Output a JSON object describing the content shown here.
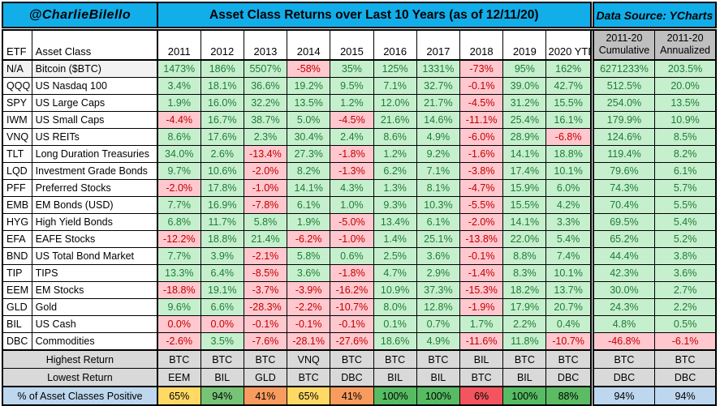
{
  "header": {
    "handle": "@CharlieBilello",
    "title": "Asset Class Returns over Last 10 Years (as of 12/11/20)",
    "data_source": "Data Source: YCharts"
  },
  "columns": {
    "etf": "ETF",
    "asset_class": "Asset Class",
    "years": [
      "2011",
      "2012",
      "2013",
      "2014",
      "2015",
      "2016",
      "2017",
      "2018",
      "2019",
      "2020 YTD"
    ],
    "cumulative": "2011-20\nCumulative",
    "annualized": "2011-20\nAnnualized"
  },
  "chart_data": {
    "type": "table",
    "title": "Asset Class Returns over Last 10 Years (as of 12/11/20)",
    "columns": [
      "2011",
      "2012",
      "2013",
      "2014",
      "2015",
      "2016",
      "2017",
      "2018",
      "2019",
      "2020 YTD",
      "2011-20 Cumulative",
      "2011-20 Annualized"
    ],
    "rows": [
      {
        "etf": "N/A",
        "asset_class": "Bitcoin ($BTC)",
        "values": [
          "1473%",
          "186%",
          "5507%",
          "-58%",
          "35%",
          "125%",
          "1331%",
          "-73%",
          "95%",
          "162%",
          "6271233%",
          "203.5%"
        ]
      },
      {
        "etf": "QQQ",
        "asset_class": "US Nasdaq 100",
        "values": [
          "3.4%",
          "18.1%",
          "36.6%",
          "19.2%",
          "9.5%",
          "7.1%",
          "32.7%",
          "-0.1%",
          "39.0%",
          "42.7%",
          "512.5%",
          "20.0%"
        ]
      },
      {
        "etf": "SPY",
        "asset_class": "US Large Caps",
        "values": [
          "1.9%",
          "16.0%",
          "32.2%",
          "13.5%",
          "1.2%",
          "12.0%",
          "21.7%",
          "-4.5%",
          "31.2%",
          "15.5%",
          "254.0%",
          "13.5%"
        ]
      },
      {
        "etf": "IWM",
        "asset_class": "US Small Caps",
        "values": [
          "-4.4%",
          "16.7%",
          "38.7%",
          "5.0%",
          "-4.5%",
          "21.6%",
          "14.6%",
          "-11.1%",
          "25.4%",
          "16.1%",
          "179.9%",
          "10.9%"
        ]
      },
      {
        "etf": "VNQ",
        "asset_class": "US REITs",
        "values": [
          "8.6%",
          "17.6%",
          "2.3%",
          "30.4%",
          "2.4%",
          "8.6%",
          "4.9%",
          "-6.0%",
          "28.9%",
          "-6.8%",
          "124.6%",
          "8.5%"
        ]
      },
      {
        "etf": "TLT",
        "asset_class": "Long Duration Treasuries",
        "values": [
          "34.0%",
          "2.6%",
          "-13.4%",
          "27.3%",
          "-1.8%",
          "1.2%",
          "9.2%",
          "-1.6%",
          "14.1%",
          "18.8%",
          "119.4%",
          "8.2%"
        ]
      },
      {
        "etf": "LQD",
        "asset_class": "Investment Grade Bonds",
        "values": [
          "9.7%",
          "10.6%",
          "-2.0%",
          "8.2%",
          "-1.3%",
          "6.2%",
          "7.1%",
          "-3.8%",
          "17.4%",
          "10.1%",
          "79.6%",
          "6.1%"
        ]
      },
      {
        "etf": "PFF",
        "asset_class": "Preferred Stocks",
        "values": [
          "-2.0%",
          "17.8%",
          "-1.0%",
          "14.1%",
          "4.3%",
          "1.3%",
          "8.1%",
          "-4.7%",
          "15.9%",
          "6.0%",
          "74.3%",
          "5.7%"
        ]
      },
      {
        "etf": "EMB",
        "asset_class": "EM Bonds (USD)",
        "values": [
          "7.7%",
          "16.9%",
          "-7.8%",
          "6.1%",
          "1.0%",
          "9.3%",
          "10.3%",
          "-5.5%",
          "15.5%",
          "4.2%",
          "70.4%",
          "5.5%"
        ]
      },
      {
        "etf": "HYG",
        "asset_class": "High Yield Bonds",
        "values": [
          "6.8%",
          "11.7%",
          "5.8%",
          "1.9%",
          "-5.0%",
          "13.4%",
          "6.1%",
          "-2.0%",
          "14.1%",
          "3.3%",
          "69.5%",
          "5.4%"
        ]
      },
      {
        "etf": "EFA",
        "asset_class": "EAFE Stocks",
        "values": [
          "-12.2%",
          "18.8%",
          "21.4%",
          "-6.2%",
          "-1.0%",
          "1.4%",
          "25.1%",
          "-13.8%",
          "22.0%",
          "5.4%",
          "65.2%",
          "5.2%"
        ]
      },
      {
        "etf": "BND",
        "asset_class": "US Total Bond Market",
        "values": [
          "7.7%",
          "3.9%",
          "-2.1%",
          "5.8%",
          "0.6%",
          "2.5%",
          "3.6%",
          "-0.1%",
          "8.8%",
          "7.4%",
          "44.4%",
          "3.8%"
        ]
      },
      {
        "etf": "TIP",
        "asset_class": "TIPS",
        "values": [
          "13.3%",
          "6.4%",
          "-8.5%",
          "3.6%",
          "-1.8%",
          "4.7%",
          "2.9%",
          "-1.4%",
          "8.3%",
          "10.1%",
          "42.3%",
          "3.6%"
        ]
      },
      {
        "etf": "EEM",
        "asset_class": "EM Stocks",
        "values": [
          "-18.8%",
          "19.1%",
          "-3.7%",
          "-3.9%",
          "-16.2%",
          "10.9%",
          "37.3%",
          "-15.3%",
          "18.2%",
          "13.7%",
          "30.0%",
          "2.7%"
        ]
      },
      {
        "etf": "GLD",
        "asset_class": "Gold",
        "values": [
          "9.6%",
          "6.6%",
          "-28.3%",
          "-2.2%",
          "-10.7%",
          "8.0%",
          "12.8%",
          "-1.9%",
          "17.9%",
          "20.7%",
          "24.3%",
          "2.2%"
        ]
      },
      {
        "etf": "BIL",
        "asset_class": "US Cash",
        "values": [
          "0.0%",
          "0.0%",
          "-0.1%",
          "-0.1%",
          "-0.1%",
          "0.1%",
          "0.7%",
          "1.7%",
          "2.2%",
          "0.4%",
          "4.8%",
          "0.5%"
        ]
      },
      {
        "etf": "DBC",
        "asset_class": "Commodities",
        "values": [
          "-2.6%",
          "3.5%",
          "-7.6%",
          "-28.1%",
          "-27.6%",
          "18.6%",
          "4.9%",
          "-11.6%",
          "11.8%",
          "-10.7%",
          "-46.8%",
          "-6.1%"
        ]
      }
    ],
    "highest_return": {
      "label": "Highest Return",
      "values": [
        "BTC",
        "BTC",
        "BTC",
        "VNQ",
        "BTC",
        "BTC",
        "BTC",
        "BIL",
        "BTC",
        "BTC",
        "BTC",
        "BTC"
      ]
    },
    "lowest_return": {
      "label": "Lowest Return",
      "values": [
        "EEM",
        "BIL",
        "GLD",
        "BTC",
        "DBC",
        "BIL",
        "BIL",
        "BTC",
        "BIL",
        "DBC",
        "DBC",
        "DBC"
      ]
    },
    "pct_positive": {
      "label": "% of Asset Classes Positive",
      "cells": [
        {
          "value": "65%",
          "bg": "#FFD964"
        },
        {
          "value": "94%",
          "bg": "#77C377"
        },
        {
          "value": "41%",
          "bg": "#F89B5E"
        },
        {
          "value": "65%",
          "bg": "#FFD964"
        },
        {
          "value": "41%",
          "bg": "#F89B5E"
        },
        {
          "value": "100%",
          "bg": "#57BB63"
        },
        {
          "value": "100%",
          "bg": "#57BB63"
        },
        {
          "value": "6%",
          "bg": "#F2555F"
        },
        {
          "value": "100%",
          "bg": "#57BB63"
        },
        {
          "value": "88%",
          "bg": "#5CBC63"
        },
        {
          "value": "94%",
          "bg": "#BDD7EE"
        },
        {
          "value": "94%",
          "bg": "#BDD7EE"
        }
      ]
    }
  },
  "colors": {
    "header_bar": "#12AEEA",
    "positive_bg": "#C6EFCE",
    "positive_text": "#1F7D35",
    "negative_bg": "#FFC7CE",
    "negative_text": "#C00000",
    "column_header_gray": "#BFBFBF",
    "summary_gray": "#D9D9D9",
    "summary_blue": "#BDD7EE"
  }
}
